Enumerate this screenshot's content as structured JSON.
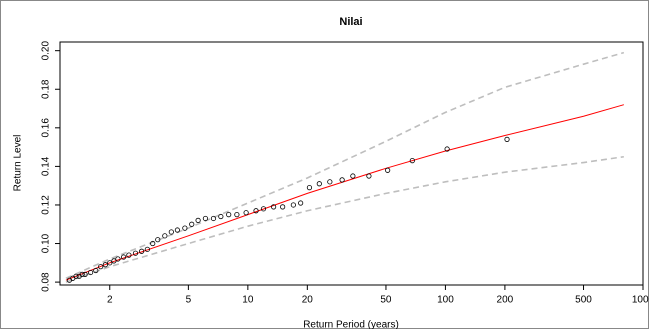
{
  "chart_data": {
    "type": "scatter",
    "title": "Nilai",
    "x_label": "Return Period (years)",
    "y_label": "Return Level",
    "log_x": true,
    "xlim": [
      1.12,
      1000
    ],
    "ylim": [
      0.0785,
      0.2045
    ],
    "xticks": [
      2,
      5,
      10,
      20,
      50,
      100,
      200,
      500,
      1000
    ],
    "yticks": [
      0.08,
      {
        "value": 0.1,
        "label": "0.10"
      },
      0.12,
      0.14,
      0.16,
      0.18,
      {
        "value": 0.2,
        "label": "0.20"
      }
    ],
    "points": {
      "color": "#000000",
      "x": [
        1.25,
        1.3,
        1.35,
        1.4,
        1.45,
        1.5,
        1.6,
        1.7,
        1.8,
        1.9,
        2.0,
        2.1,
        2.2,
        2.35,
        2.5,
        2.7,
        2.9,
        3.1,
        3.3,
        3.5,
        3.8,
        4.1,
        4.4,
        4.8,
        5.2,
        5.6,
        6.1,
        6.7,
        7.3,
        8.0,
        8.8,
        9.8,
        11,
        12,
        13.5,
        15,
        17,
        18.5,
        20.5,
        23,
        26,
        30,
        34,
        41,
        51,
        68,
        102,
        205
      ],
      "values": [
        0.081,
        0.082,
        0.083,
        0.083,
        0.084,
        0.084,
        0.085,
        0.086,
        0.088,
        0.089,
        0.09,
        0.091,
        0.092,
        0.093,
        0.094,
        0.095,
        0.096,
        0.097,
        0.1,
        0.102,
        0.104,
        0.106,
        0.107,
        0.108,
        0.11,
        0.112,
        0.113,
        0.113,
        0.114,
        0.115,
        0.115,
        0.116,
        0.117,
        0.118,
        0.119,
        0.119,
        0.12,
        0.121,
        0.129,
        0.131,
        0.132,
        0.133,
        0.135,
        0.135,
        0.138,
        0.143,
        0.149,
        0.154
      ]
    },
    "lines": [
      {
        "color": "#ff0000",
        "dashed": false,
        "x": [
          1.2,
          2,
          5,
          10,
          20,
          50,
          100,
          200,
          500,
          800
        ],
        "values": [
          0.081,
          0.09,
          0.104,
          0.115,
          0.126,
          0.139,
          0.148,
          0.156,
          0.166,
          0.172
        ]
      },
      {
        "color": "#bebebe",
        "dashed": true,
        "x": [
          1.2,
          2,
          5,
          10,
          20,
          50,
          100,
          200,
          500,
          800
        ],
        "values": [
          0.082,
          0.092,
          0.108,
          0.121,
          0.134,
          0.153,
          0.168,
          0.181,
          0.193,
          0.199
        ]
      },
      {
        "color": "#bebebe",
        "dashed": true,
        "x": [
          1.2,
          2,
          5,
          10,
          20,
          50,
          100,
          200,
          500,
          800
        ],
        "values": [
          0.08,
          0.088,
          0.1,
          0.109,
          0.117,
          0.126,
          0.132,
          0.137,
          0.142,
          0.145
        ]
      }
    ]
  }
}
